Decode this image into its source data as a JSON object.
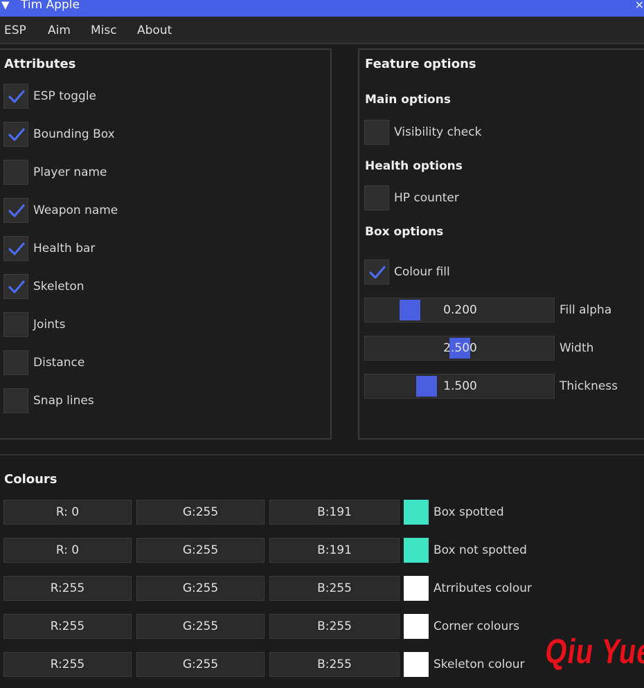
{
  "window": {
    "title": "Tim Apple",
    "collapse_glyph": "▼",
    "close_glyph": "×"
  },
  "menu": [
    "ESP",
    "Aim",
    "Misc",
    "About"
  ],
  "attributes": {
    "heading": "Attributes",
    "items": [
      {
        "label": "ESP toggle",
        "checked": true
      },
      {
        "label": "Bounding Box",
        "checked": true
      },
      {
        "label": "Player name",
        "checked": false
      },
      {
        "label": "Weapon name",
        "checked": true
      },
      {
        "label": "Health bar",
        "checked": true
      },
      {
        "label": "Skeleton",
        "checked": true
      },
      {
        "label": "Joints",
        "checked": false
      },
      {
        "label": "Distance",
        "checked": false
      },
      {
        "label": "Snap lines",
        "checked": false
      }
    ]
  },
  "features": {
    "heading": "Feature options",
    "main_heading": "Main options",
    "visibility": {
      "label": "Visibility check",
      "checked": false
    },
    "health_heading": "Health options",
    "hp": {
      "label": "HP counter",
      "checked": false
    },
    "box_heading": "Box options",
    "colour_fill": {
      "label": "Colour fill",
      "checked": true
    },
    "sliders": [
      {
        "value": "0.200",
        "label": "Fill alpha",
        "level": 0.2
      },
      {
        "value": "2.500",
        "label": "Width",
        "level": 0.5
      },
      {
        "value": "1.500",
        "label": "Thickness",
        "level": 0.3
      }
    ]
  },
  "colours": {
    "heading": "Colours",
    "rows": [
      {
        "r": "R:  0",
        "g": "G:255",
        "b": "B:191",
        "swatch": "#3de3c3",
        "label": "Box spotted"
      },
      {
        "r": "R:  0",
        "g": "G:255",
        "b": "B:191",
        "swatch": "#3de3c3",
        "label": "Box not spotted"
      },
      {
        "r": "R:255",
        "g": "G:255",
        "b": "B:255",
        "swatch": "#ffffff",
        "label": "Atrributes colour"
      },
      {
        "r": "R:255",
        "g": "G:255",
        "b": "B:255",
        "swatch": "#ffffff",
        "label": "Corner colours"
      },
      {
        "r": "R:255",
        "g": "G:255",
        "b": "B:255",
        "swatch": "#ffffff",
        "label": "Skeleton colour"
      }
    ]
  },
  "watermark": "Qiu Yue",
  "accent": "#4660e6",
  "check_color": "#4a6cf0"
}
